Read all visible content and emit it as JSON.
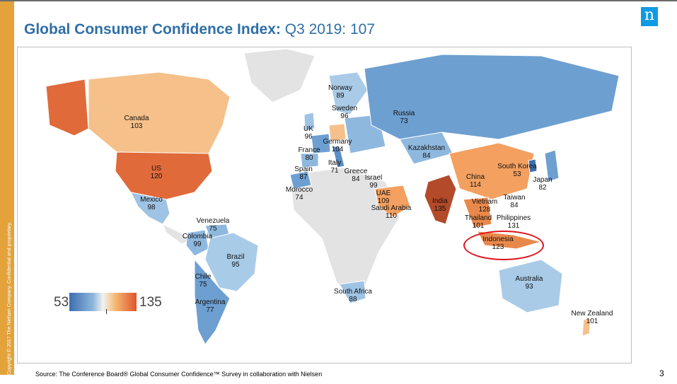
{
  "slide": {
    "title_bold": "Global Consumer Confidence Index:",
    "title_rest": "Q3 2019: 107",
    "logo_glyph": "n",
    "copyright": "Copyright © 2017 The Nielsen Company. Confidential and proprietary.",
    "source_label": "Source:",
    "source_text": "The Conference Board® Global Consumer Confidence™ Survey in collaboration with Nielsen",
    "page_number": "3"
  },
  "legend": {
    "min": "53",
    "max": "135",
    "low_color": "#3c6fb0",
    "high_color": "#e0532c"
  },
  "highlight": {
    "country": "Indonesia",
    "color": "#e1131d"
  },
  "countries": [
    {
      "name": "Canada",
      "value": "103"
    },
    {
      "name": "US",
      "value": "120"
    },
    {
      "name": "Mexico",
      "value": "98"
    },
    {
      "name": "Venezuela",
      "value": "75"
    },
    {
      "name": "Colombia",
      "value": "99"
    },
    {
      "name": "Brazil",
      "value": "95"
    },
    {
      "name": "Chile",
      "value": "75"
    },
    {
      "name": "Argentina",
      "value": "77"
    },
    {
      "name": "Norway",
      "value": "89"
    },
    {
      "name": "Sweden",
      "value": "96"
    },
    {
      "name": "UK",
      "value": "96"
    },
    {
      "name": "Germany",
      "value": "104"
    },
    {
      "name": "France",
      "value": "80"
    },
    {
      "name": "Italy",
      "value": "71"
    },
    {
      "name": "Spain",
      "value": "87"
    },
    {
      "name": "Greece",
      "value": "84"
    },
    {
      "name": "Morocco",
      "value": "74"
    },
    {
      "name": "Israel",
      "value": "99"
    },
    {
      "name": "UAE",
      "value": "109"
    },
    {
      "name": "Saudi Arabia",
      "value": "110"
    },
    {
      "name": "Russia",
      "value": "73"
    },
    {
      "name": "Kazakhstan",
      "value": "84"
    },
    {
      "name": "China",
      "value": "114"
    },
    {
      "name": "South Korea",
      "value": "53"
    },
    {
      "name": "Japan",
      "value": "82"
    },
    {
      "name": "India",
      "value": "135"
    },
    {
      "name": "Taiwan",
      "value": "84"
    },
    {
      "name": "Vietnam",
      "value": "128"
    },
    {
      "name": "Thailand",
      "value": "101"
    },
    {
      "name": "Philippines",
      "value": "131"
    },
    {
      "name": "Indonesia",
      "value": "123"
    },
    {
      "name": "South Africa",
      "value": "88"
    },
    {
      "name": "Australia",
      "value": "93"
    },
    {
      "name": "New Zealand",
      "value": "101"
    }
  ]
}
